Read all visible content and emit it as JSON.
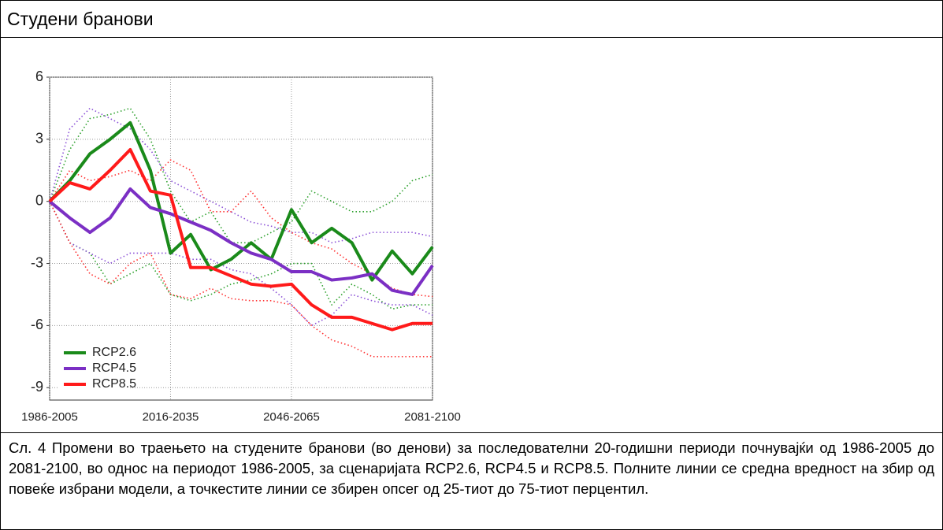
{
  "header": {
    "title": "Студени бранови"
  },
  "chart_data": {
    "type": "line",
    "x": [
      1986,
      1991,
      1996,
      2001,
      2006,
      2011,
      2016,
      2021,
      2026,
      2031,
      2036,
      2041,
      2046,
      2051,
      2056,
      2061,
      2066,
      2071,
      2076,
      2081
    ],
    "xlim": [
      1986,
      2081
    ],
    "xticks": [
      {
        "value": 1986,
        "label": "1986-2005"
      },
      {
        "value": 2016,
        "label": "2016-2035"
      },
      {
        "value": 2046,
        "label": "2046-2065"
      },
      {
        "value": 2081,
        "label": "2081-2100"
      }
    ],
    "ylim": [
      -9.6,
      6
    ],
    "yticks": [
      6,
      3,
      0,
      -3,
      -6,
      -9
    ],
    "grid": true,
    "legend": "lower left",
    "series": [
      {
        "color": "#2ca02c",
        "style": "dotted",
        "values": [
          0,
          2.5,
          4.0,
          4.2,
          4.5,
          3.0,
          0.5,
          -1.0,
          -0.5,
          -2.0,
          -2.0,
          -1.5,
          -1.0,
          0.5,
          0,
          -0.5,
          -0.5,
          0,
          1.0,
          1.3
        ]
      },
      {
        "color": "#2ca02c",
        "style": "dotted",
        "values": [
          0,
          -2.0,
          -2.5,
          -4.0,
          -3.5,
          -3.0,
          -4.5,
          -4.8,
          -4.5,
          -4.0,
          -3.8,
          -3.5,
          -3.0,
          -3.0,
          -5.0,
          -4.0,
          -4.5,
          -5.2,
          -5.0,
          -5.0
        ]
      },
      {
        "color": "#8a4fd6",
        "style": "dotted",
        "values": [
          0,
          3.5,
          4.5,
          4.0,
          3.5,
          2.5,
          1.0,
          0.5,
          0,
          -0.5,
          -1.0,
          -1.2,
          -1.5,
          -1.5,
          -2.0,
          -1.8,
          -1.5,
          -1.5,
          -1.5,
          -1.7
        ]
      },
      {
        "color": "#8a4fd6",
        "style": "dotted",
        "values": [
          0,
          -2.0,
          -2.5,
          -3.0,
          -2.5,
          -2.5,
          -2.5,
          -2.8,
          -2.8,
          -3.3,
          -3.5,
          -4.2,
          -5.0,
          -6.0,
          -5.5,
          -4.5,
          -4.8,
          -5.0,
          -5.0,
          -5.5
        ]
      },
      {
        "color": "#ff3030",
        "style": "dotted",
        "values": [
          0,
          1.5,
          1.0,
          1.2,
          1.5,
          1.0,
          2.0,
          1.5,
          -0.5,
          -0.5,
          0.5,
          -0.8,
          -1.5,
          -2.0,
          -2.3,
          -3.0,
          -3.5,
          -4.2,
          -4.5,
          -4.6
        ]
      },
      {
        "color": "#ff3030",
        "style": "dotted",
        "values": [
          0,
          -2.0,
          -3.5,
          -4.0,
          -3.0,
          -2.5,
          -4.5,
          -4.7,
          -4.2,
          -4.7,
          -4.8,
          -4.8,
          -5.0,
          -6.0,
          -6.7,
          -7.0,
          -7.5,
          -7.5,
          -7.5,
          -7.5
        ]
      },
      {
        "name": "RCP2.6",
        "color": "#1a8a1a",
        "style": "solid",
        "values": [
          0,
          1.0,
          2.3,
          3.0,
          3.8,
          1.5,
          -2.5,
          -1.6,
          -3.3,
          -2.8,
          -2.0,
          -2.8,
          -0.4,
          -2.0,
          -1.3,
          -2.0,
          -3.8,
          -2.4,
          -3.5,
          -2.2
        ]
      },
      {
        "name": "RCP4.5",
        "color": "#7b2fc4",
        "style": "solid",
        "values": [
          0,
          -0.8,
          -1.5,
          -0.8,
          0.6,
          -0.3,
          -0.6,
          -1.0,
          -1.4,
          -2.0,
          -2.5,
          -2.8,
          -3.4,
          -3.4,
          -3.8,
          -3.7,
          -3.5,
          -4.3,
          -4.5,
          -3.1
        ]
      },
      {
        "name": "RCP8.5",
        "color": "#ff1a1a",
        "style": "solid",
        "values": [
          0,
          0.9,
          0.6,
          1.5,
          2.5,
          0.5,
          0.3,
          -3.2,
          -3.2,
          -3.6,
          -4.0,
          -4.1,
          -4.0,
          -5.0,
          -5.6,
          -5.6,
          -5.9,
          -6.2,
          -5.9,
          -5.9
        ]
      }
    ]
  },
  "caption": "Сл. 4 Промени во траењето на студените бранови (во денови) за последователни 20-годишни периоди почнувајќи од 1986-2005 до 2081-2100, во однос на периодот 1986-2005, за сценаријата RCP2.6, RCP4.5 и RCP8.5. Полните линии се средна вредност на збир од повеќе избрани модели, а точкестите линии се збирен опсег од 25-тиот до 75-тиот перцентил."
}
